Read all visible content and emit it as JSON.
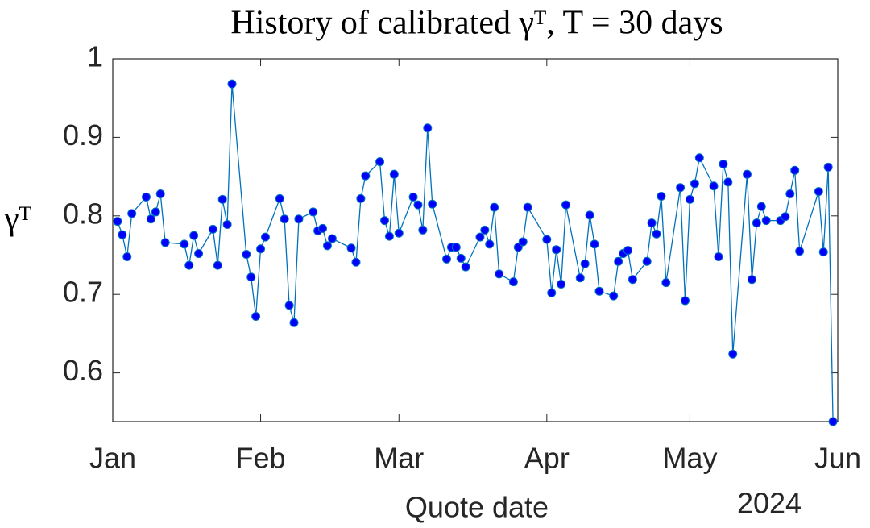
{
  "chart_data": {
    "type": "line",
    "title": "History of calibrated γᵀ, T = 30 days",
    "x_label": "Quote date",
    "y_label": "γᵀ",
    "x_year": "2024",
    "x": [
      1,
      2,
      3,
      4,
      7,
      8,
      9,
      10,
      11,
      15,
      16,
      17,
      18,
      21,
      22,
      23,
      24,
      25,
      28,
      29,
      30,
      31,
      32,
      35,
      36,
      37,
      38,
      39,
      42,
      43,
      44,
      45,
      46,
      50,
      51,
      52,
      53,
      56,
      57,
      58,
      59,
      60,
      63,
      64,
      65,
      66,
      67,
      70,
      71,
      72,
      73,
      74,
      77,
      78,
      79,
      80,
      81,
      84,
      85,
      86,
      87,
      91,
      92,
      93,
      94,
      95,
      98,
      99,
      100,
      101,
      102,
      105,
      106,
      107,
      108,
      109,
      112,
      113,
      114,
      115,
      116,
      119,
      120,
      121,
      122,
      123,
      126,
      127,
      128,
      129,
      130,
      133,
      134,
      135,
      136,
      137,
      140,
      141,
      142,
      143,
      144,
      148,
      149,
      150,
      151
    ],
    "series": [
      {
        "name": "γᵀ",
        "color": "#0072bd",
        "marker_color": "#0000ff",
        "values": [
          0.793,
          0.776,
          0.748,
          0.803,
          0.824,
          0.796,
          0.805,
          0.828,
          0.766,
          0.764,
          0.737,
          0.775,
          0.752,
          0.783,
          0.737,
          0.821,
          0.789,
          0.968,
          0.751,
          0.722,
          0.672,
          0.758,
          0.773,
          0.822,
          0.796,
          0.686,
          0.664,
          0.796,
          0.805,
          0.781,
          0.784,
          0.762,
          0.771,
          0.759,
          0.741,
          0.822,
          0.851,
          0.869,
          0.794,
          0.774,
          0.853,
          0.778,
          0.824,
          0.814,
          0.782,
          0.912,
          0.815,
          0.745,
          0.76,
          0.76,
          0.746,
          0.735,
          0.773,
          0.782,
          0.764,
          0.811,
          0.726,
          0.716,
          0.76,
          0.767,
          0.811,
          0.77,
          0.702,
          0.757,
          0.713,
          0.814,
          0.721,
          0.739,
          0.801,
          0.764,
          0.704,
          0.698,
          0.742,
          0.752,
          0.756,
          0.719,
          0.742,
          0.791,
          0.777,
          0.825,
          0.715,
          0.836,
          0.692,
          0.821,
          0.841,
          0.874,
          0.838,
          0.748,
          0.866,
          0.843,
          0.624,
          0.853,
          0.719,
          0.791,
          0.812,
          0.794,
          0.794,
          0.799,
          0.828,
          0.858,
          0.755,
          0.831,
          0.754,
          0.862,
          0.538
        ]
      }
    ],
    "xlim": [
      0,
      152
    ],
    "xticks": [
      {
        "value": 0,
        "label": "Jan"
      },
      {
        "value": 31,
        "label": "Feb"
      },
      {
        "value": 60,
        "label": "Mar"
      },
      {
        "value": 91,
        "label": "Apr"
      },
      {
        "value": 121,
        "label": "May"
      },
      {
        "value": 152,
        "label": "Jun"
      }
    ],
    "ylim": [
      0.538,
      1
    ],
    "yticks": [
      0.6,
      0.7,
      0.8,
      0.9,
      1
    ],
    "grid": false
  }
}
